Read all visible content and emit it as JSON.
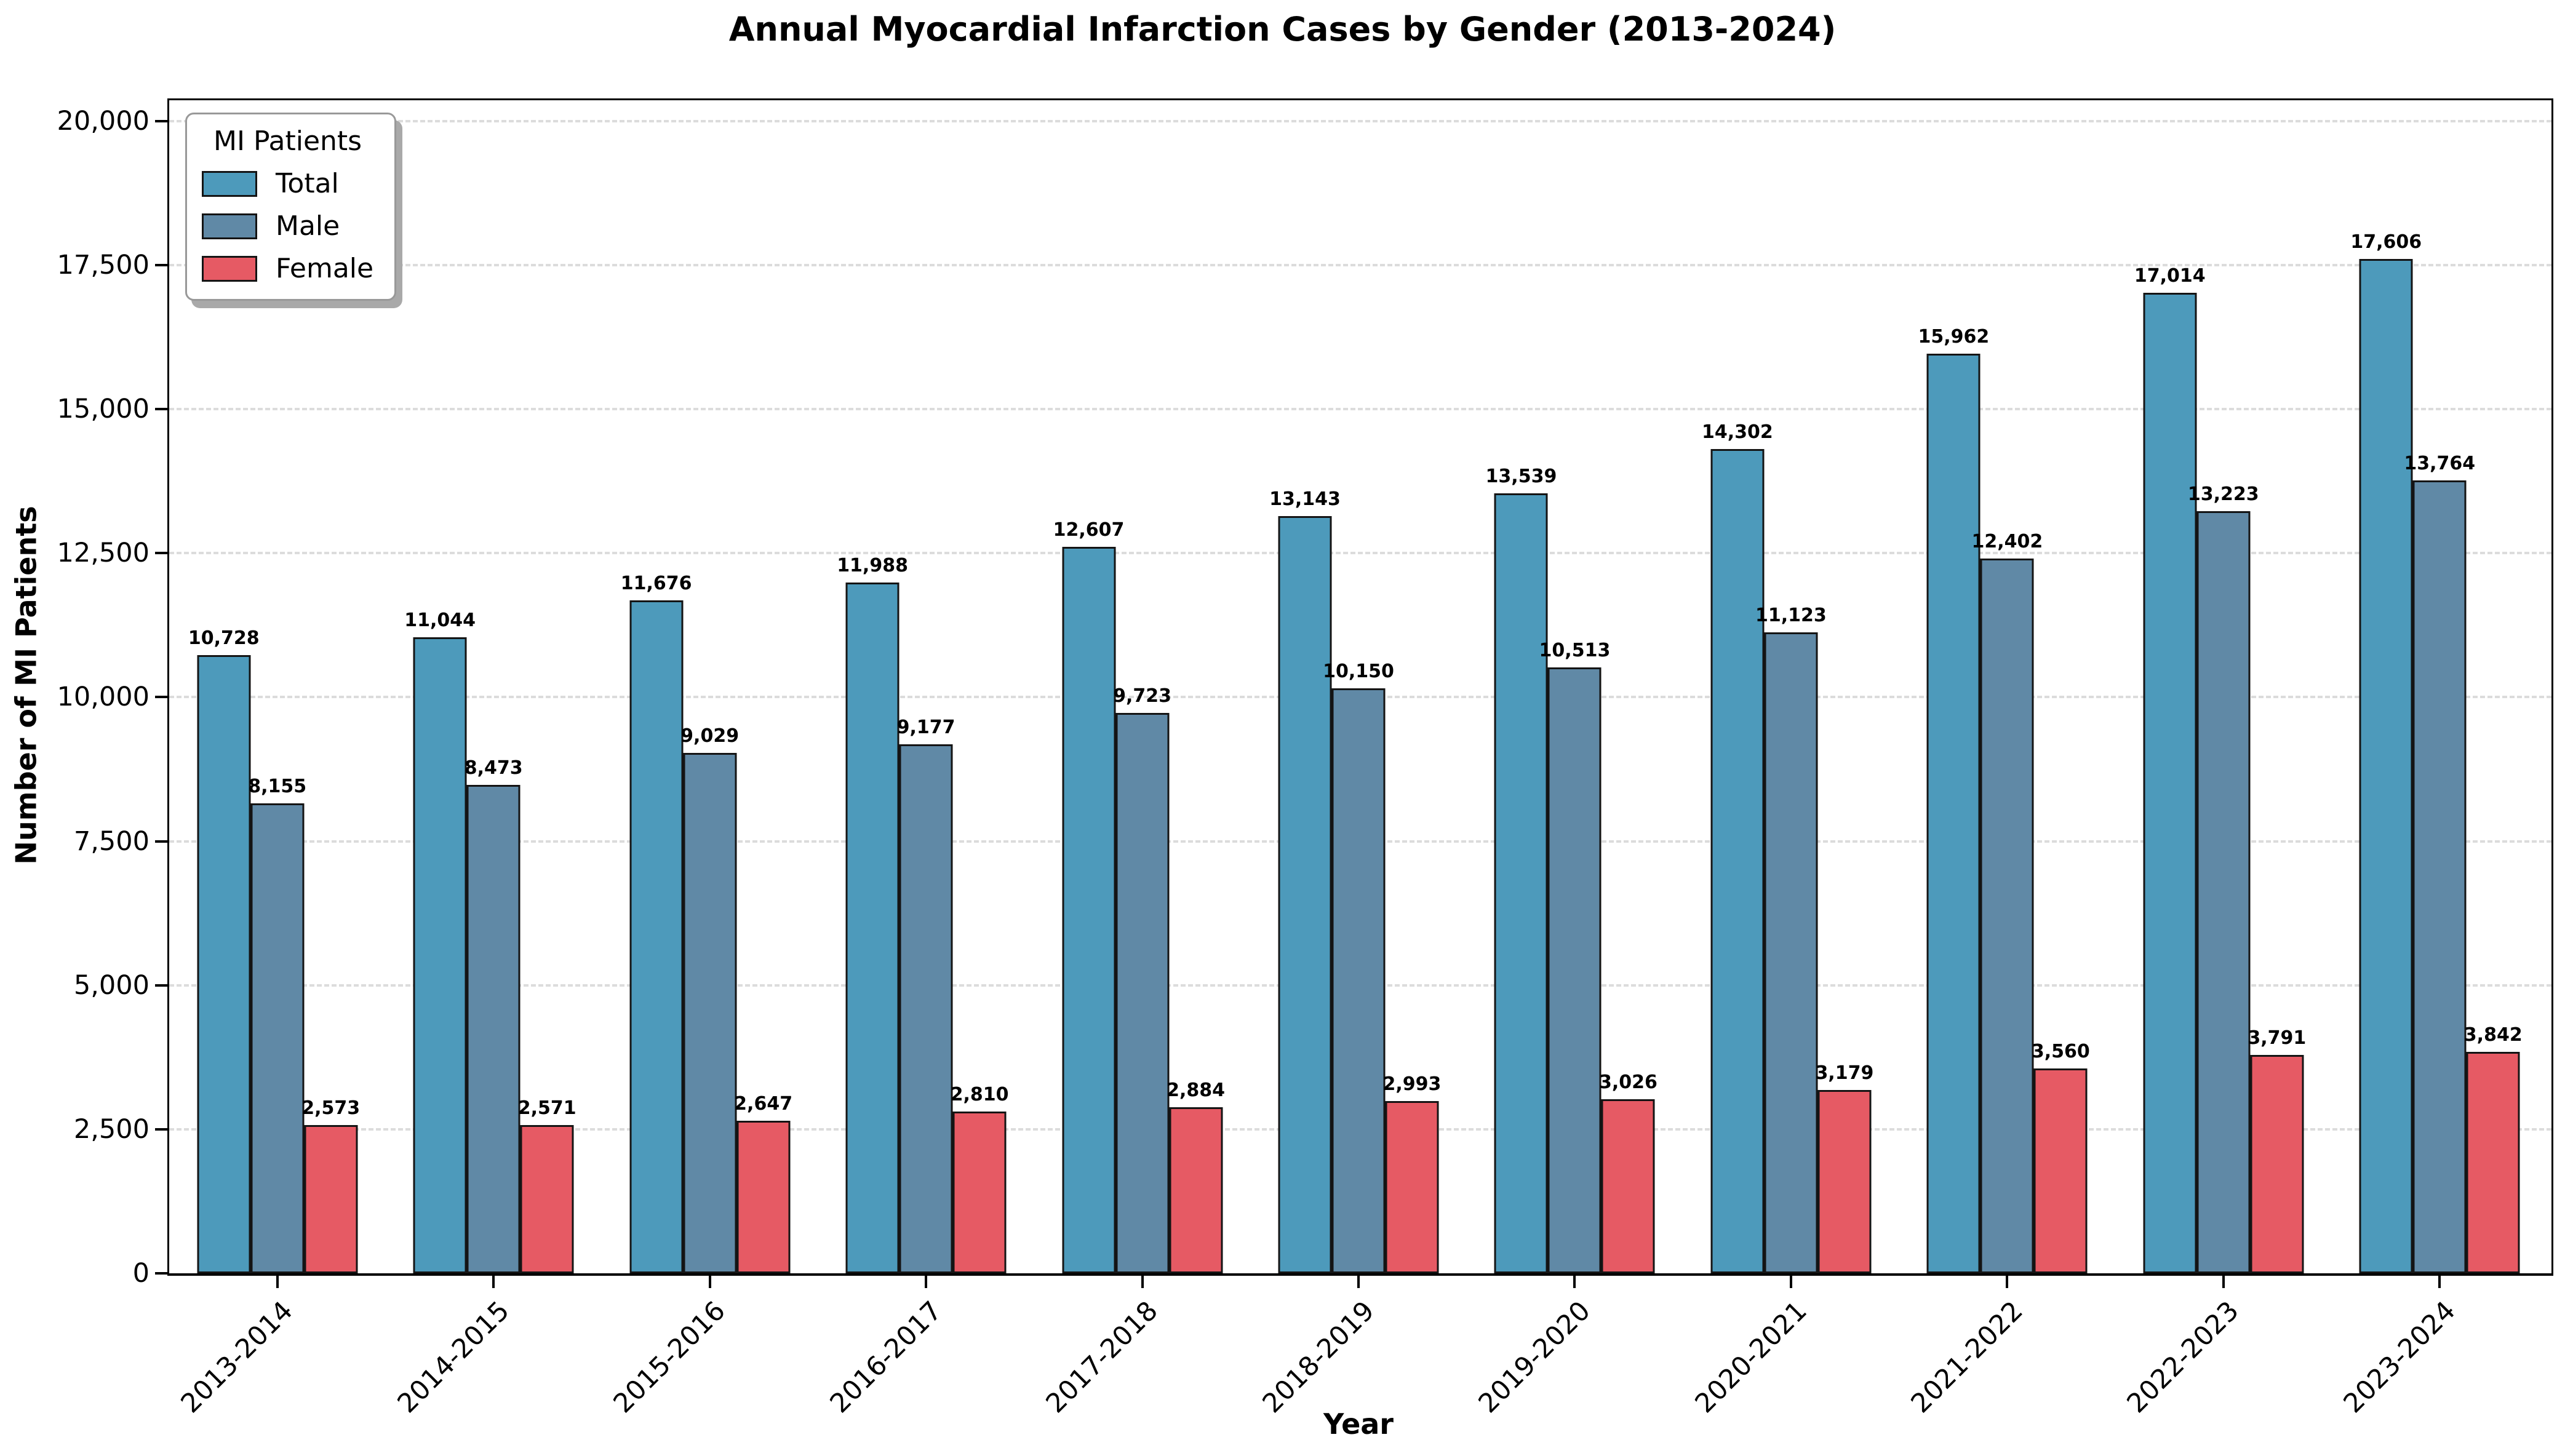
{
  "chart_data": {
    "type": "bar",
    "title": "Annual Myocardial Infarction Cases by Gender (2013-2024)",
    "xlabel": "Year",
    "ylabel": "Number of MI Patients",
    "ylim": [
      0,
      20000
    ],
    "ymax_display": 20360,
    "yticks": [
      0,
      2500,
      5000,
      7500,
      10000,
      12500,
      15000,
      17500,
      20000
    ],
    "ytick_labels": [
      "0",
      "2,500",
      "5,000",
      "7,500",
      "10,000",
      "12,500",
      "15,000",
      "17,500",
      "20,000"
    ],
    "grid": "horizontal-dashed",
    "bar_labels": true,
    "legend": {
      "title": "MI Patients",
      "position": "upper-left"
    },
    "categories": [
      "2013-2014",
      "2014-2015",
      "2015-2016",
      "2016-2017",
      "2017-2018",
      "2018-2019",
      "2019-2020",
      "2020-2021",
      "2021-2022",
      "2022-2023",
      "2023-2024"
    ],
    "series": [
      {
        "name": "Total",
        "color": "#4D9ABB",
        "values": [
          10728,
          11044,
          11676,
          11988,
          12607,
          13143,
          13539,
          14302,
          15962,
          17014,
          17606
        ]
      },
      {
        "name": "Male",
        "color": "#6089A6",
        "values": [
          8155,
          8473,
          9029,
          9177,
          9723,
          10150,
          10513,
          11123,
          12402,
          13223,
          13764
        ]
      },
      {
        "name": "Female",
        "color": "#E65A64",
        "values": [
          2573,
          2571,
          2647,
          2810,
          2884,
          2993,
          3026,
          3179,
          3560,
          3791,
          3842
        ]
      }
    ],
    "bar_edge_color": "#141414",
    "grid_color": "#dcdcdc",
    "background_color": "#ffffff"
  }
}
